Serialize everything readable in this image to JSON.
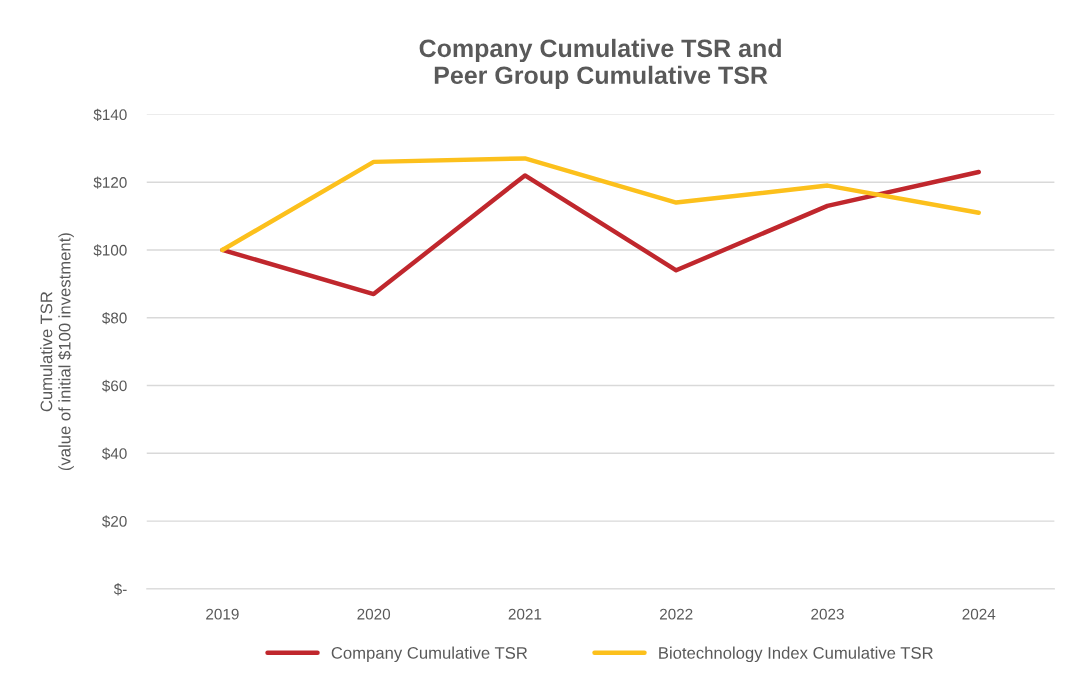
{
  "chart_data": {
    "type": "line",
    "title": "Company Cumulative TSR and\nPeer Group Cumulative TSR",
    "ylabel": "Cumulative TSR\n(value of initial $100 investment)",
    "categories": [
      "2019",
      "2020",
      "2021",
      "2022",
      "2023",
      "2024"
    ],
    "series": [
      {
        "name": "Company Cumulative TSR",
        "color": "#c0272d",
        "values": [
          100,
          87,
          122,
          94,
          113,
          123
        ]
      },
      {
        "name": "Biotechnology Index Cumulative TSR",
        "color": "#fcc01c",
        "values": [
          100,
          126,
          127,
          114,
          119,
          111
        ]
      }
    ],
    "ylim": [
      0,
      140
    ],
    "yticks": [
      {
        "value": 0,
        "label": "$-"
      },
      {
        "value": 20,
        "label": "$20"
      },
      {
        "value": 40,
        "label": "$40"
      },
      {
        "value": 60,
        "label": "$60"
      },
      {
        "value": 80,
        "label": "$80"
      },
      {
        "value": 100,
        "label": "$100"
      },
      {
        "value": 120,
        "label": "$120"
      },
      {
        "value": 140,
        "label": "$140"
      }
    ],
    "grid": "y",
    "legend": "bottom",
    "line_style": "solid",
    "marker": "none"
  }
}
